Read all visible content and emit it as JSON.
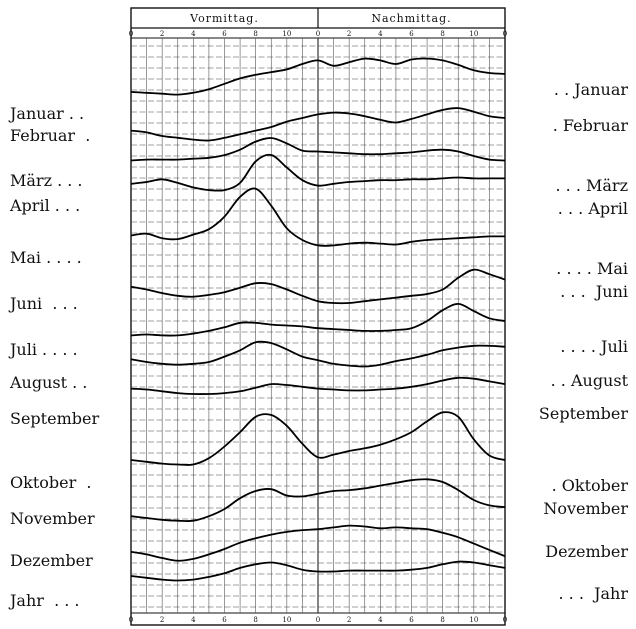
{
  "chart_data": {
    "type": "line",
    "title": "",
    "header": {
      "left": "Vormittag.",
      "right": "Nachmittag."
    },
    "top_ticks": [
      "0",
      "2",
      "4",
      "6",
      "8",
      "10",
      "0",
      "2",
      "4",
      "6",
      "8",
      "10",
      "0"
    ],
    "bottom_ticks": [
      "0",
      "2",
      "4",
      "6",
      "8",
      "10",
      "0",
      "2",
      "4",
      "6",
      "8",
      "10",
      "0"
    ],
    "x_hours": [
      0,
      1,
      2,
      3,
      4,
      5,
      6,
      7,
      8,
      9,
      10,
      11,
      12,
      13,
      14,
      15,
      16,
      17,
      18,
      19,
      20,
      21,
      22,
      23,
      24
    ],
    "xlim": [
      0,
      24
    ],
    "grid": true,
    "series": [
      {
        "name": "Januar",
        "left_label": "Januar . .",
        "right_label": ". . Januar",
        "values": [
          0.49,
          0.48,
          0.47,
          0.46,
          0.48,
          0.52,
          0.58,
          0.64,
          0.68,
          0.71,
          0.74,
          0.8,
          0.84,
          0.78,
          0.82,
          0.86,
          0.84,
          0.8,
          0.85,
          0.86,
          0.84,
          0.79,
          0.73,
          0.7,
          0.69
        ]
      },
      {
        "name": "Februar",
        "left_label": "Februar  .",
        "right_label": ". Februar",
        "values": [
          0.46,
          0.44,
          0.4,
          0.38,
          0.36,
          0.35,
          0.38,
          0.42,
          0.46,
          0.5,
          0.56,
          0.6,
          0.64,
          0.66,
          0.65,
          0.62,
          0.58,
          0.55,
          0.59,
          0.64,
          0.69,
          0.71,
          0.67,
          0.62,
          0.6
        ]
      },
      {
        "name": "März",
        "left_label": "März . . .",
        "right_label": ". . . März",
        "values": [
          0.35,
          0.36,
          0.36,
          0.36,
          0.37,
          0.38,
          0.41,
          0.47,
          0.56,
          0.6,
          0.54,
          0.46,
          0.45,
          0.44,
          0.43,
          0.42,
          0.42,
          0.43,
          0.44,
          0.46,
          0.47,
          0.45,
          0.4,
          0.36,
          0.35
        ]
      },
      {
        "name": "April",
        "left_label": "April . . .",
        "right_label": ". . . April",
        "values": [
          0.38,
          0.4,
          0.43,
          0.39,
          0.34,
          0.31,
          0.31,
          0.39,
          0.63,
          0.7,
          0.56,
          0.42,
          0.36,
          0.38,
          0.4,
          0.41,
          0.42,
          0.42,
          0.43,
          0.43,
          0.44,
          0.45,
          0.44,
          0.44,
          0.44
        ]
      },
      {
        "name": "Mai",
        "left_label": "Mai . . . .",
        "right_label": ". . . . Mai",
        "values": [
          0.45,
          0.47,
          0.42,
          0.41,
          0.46,
          0.52,
          0.66,
          0.88,
          0.97,
          0.78,
          0.53,
          0.4,
          0.34,
          0.34,
          0.36,
          0.37,
          0.36,
          0.35,
          0.38,
          0.4,
          0.41,
          0.42,
          0.43,
          0.44,
          0.44
        ]
      },
      {
        "name": "Juni",
        "left_label": "Juni  . . .",
        "right_label": ". . .  Juni",
        "values": [
          0.48,
          0.45,
          0.41,
          0.38,
          0.37,
          0.39,
          0.42,
          0.47,
          0.52,
          0.51,
          0.45,
          0.38,
          0.32,
          0.3,
          0.3,
          0.32,
          0.34,
          0.36,
          0.38,
          0.4,
          0.45,
          0.58,
          0.67,
          0.62,
          0.56
        ]
      },
      {
        "name": "Juli",
        "left_label": "Juli . . . .",
        "right_label": ". . . . Juli",
        "values": [
          0.34,
          0.35,
          0.34,
          0.34,
          0.36,
          0.39,
          0.43,
          0.48,
          0.48,
          0.46,
          0.45,
          0.44,
          0.42,
          0.41,
          0.4,
          0.39,
          0.39,
          0.4,
          0.42,
          0.5,
          0.62,
          0.69,
          0.61,
          0.53,
          0.5
        ]
      },
      {
        "name": "August",
        "left_label": "August . .",
        "right_label": ". . August",
        "values": [
          0.43,
          0.4,
          0.38,
          0.37,
          0.38,
          0.4,
          0.46,
          0.53,
          0.62,
          0.61,
          0.54,
          0.46,
          0.42,
          0.38,
          0.36,
          0.35,
          0.37,
          0.41,
          0.44,
          0.48,
          0.53,
          0.56,
          0.58,
          0.58,
          0.57
        ]
      },
      {
        "name": "September",
        "left_label": "September",
        "right_label": "September",
        "values": [
          0.46,
          0.45,
          0.43,
          0.41,
          0.4,
          0.4,
          0.41,
          0.43,
          0.47,
          0.51,
          0.5,
          0.48,
          0.46,
          0.45,
          0.44,
          0.44,
          0.45,
          0.46,
          0.48,
          0.51,
          0.55,
          0.58,
          0.57,
          0.54,
          0.51
        ]
      },
      {
        "name": "Oktober",
        "left_label": "Oktober  .",
        "right_label": ". Oktober",
        "values": [
          0.4,
          0.38,
          0.36,
          0.35,
          0.35,
          0.42,
          0.55,
          0.71,
          0.88,
          0.9,
          0.78,
          0.58,
          0.43,
          0.46,
          0.5,
          0.53,
          0.57,
          0.63,
          0.71,
          0.83,
          0.93,
          0.88,
          0.63,
          0.45,
          0.4
        ]
      },
      {
        "name": "November",
        "left_label": "November",
        "right_label": "November",
        "values": [
          0.32,
          0.3,
          0.28,
          0.27,
          0.27,
          0.32,
          0.4,
          0.52,
          0.6,
          0.62,
          0.55,
          0.54,
          0.57,
          0.6,
          0.61,
          0.63,
          0.66,
          0.69,
          0.72,
          0.73,
          0.7,
          0.61,
          0.5,
          0.44,
          0.42
        ]
      },
      {
        "name": "Dezember",
        "left_label": "Dezember",
        "right_label": "Dezember",
        "values": [
          0.37,
          0.34,
          0.3,
          0.27,
          0.29,
          0.34,
          0.4,
          0.47,
          0.52,
          0.56,
          0.59,
          0.61,
          0.62,
          0.64,
          0.66,
          0.65,
          0.63,
          0.64,
          0.63,
          0.62,
          0.58,
          0.53,
          0.46,
          0.39,
          0.32
        ]
      },
      {
        "name": "Jahr",
        "left_label": "Jahr  . . .",
        "right_label": ". . .  Jahr",
        "values": [
          0.4,
          0.38,
          0.36,
          0.35,
          0.36,
          0.39,
          0.43,
          0.49,
          0.53,
          0.55,
          0.52,
          0.47,
          0.45,
          0.45,
          0.46,
          0.46,
          0.46,
          0.46,
          0.47,
          0.49,
          0.53,
          0.56,
          0.55,
          0.52,
          0.49
        ]
      }
    ]
  }
}
